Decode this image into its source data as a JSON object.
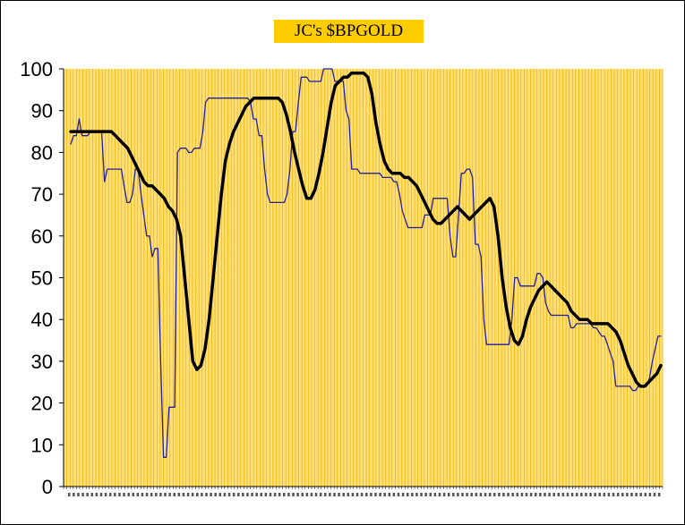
{
  "chart_data": {
    "type": "line",
    "title": "JC's $BPGOLD",
    "xlabel": "",
    "ylabel": "",
    "ylim": [
      0,
      100
    ],
    "yticks": [
      0,
      10,
      20,
      30,
      40,
      50,
      60,
      70,
      80,
      90,
      100
    ],
    "grid": "vertical",
    "plot_background": "#FFE07A",
    "grid_color": "#F2B400",
    "x_tick_labels_note": "dense date ticks (illegible)",
    "series": [
      {
        "style": "thin",
        "color": "#1F1F9E",
        "values": [
          82,
          84,
          84,
          88,
          84,
          84,
          84,
          85,
          85,
          85,
          85,
          85,
          73,
          76,
          76,
          76,
          76,
          76,
          76,
          72,
          68,
          68,
          70,
          76,
          76,
          70,
          65,
          60,
          60,
          55,
          57,
          57,
          30,
          7,
          7,
          19,
          19,
          19,
          80,
          81,
          81,
          81,
          80,
          80,
          81,
          81,
          81,
          85,
          92,
          93,
          93,
          93,
          93,
          93,
          93,
          93,
          93,
          93,
          93,
          93,
          93,
          93,
          93,
          93,
          92,
          88,
          88,
          84,
          84,
          76,
          70,
          68,
          68,
          68,
          68,
          68,
          68,
          70,
          76,
          85,
          85,
          92,
          98,
          98,
          98,
          97,
          97,
          97,
          97,
          97,
          100,
          100,
          100,
          100,
          97,
          97,
          97,
          97,
          90,
          88,
          76,
          76,
          76,
          75,
          75,
          75,
          75,
          75,
          75,
          75,
          75,
          74,
          74,
          74,
          74,
          73,
          73,
          70,
          66,
          64,
          62,
          62,
          62,
          62,
          62,
          62,
          65,
          65,
          65,
          69,
          69,
          69,
          69,
          69,
          69,
          60,
          55,
          55,
          65,
          75,
          75,
          76,
          76,
          74,
          58,
          58,
          55,
          40,
          34,
          34,
          34,
          34,
          34,
          34,
          34,
          34,
          34,
          40,
          50,
          50,
          48,
          48,
          48,
          48,
          48,
          48,
          51,
          51,
          50,
          44,
          42,
          41,
          41,
          41,
          41,
          41,
          41,
          41,
          38,
          38,
          39,
          39,
          39,
          39,
          39,
          39,
          38,
          38,
          37,
          36,
          36,
          34,
          32,
          30,
          24,
          24,
          24,
          24,
          24,
          24,
          23,
          23,
          24,
          24,
          24,
          24,
          26,
          30,
          33,
          36,
          36
        ]
      },
      {
        "style": "thick",
        "color": "#000000",
        "values": [
          85,
          85,
          85,
          85,
          85,
          85,
          85,
          85,
          85,
          85,
          85,
          84,
          83,
          82,
          81,
          79,
          77,
          75,
          73,
          72,
          72,
          71,
          70,
          69,
          67,
          66,
          64,
          60,
          50,
          40,
          30,
          28,
          29,
          33,
          40,
          50,
          60,
          70,
          78,
          82,
          85,
          87,
          89,
          91,
          92,
          93,
          93,
          93,
          93,
          93,
          93,
          93,
          92,
          89,
          85,
          80,
          76,
          72,
          69,
          69,
          71,
          75,
          80,
          86,
          92,
          96,
          97,
          98,
          98,
          99,
          99,
          99,
          99,
          98,
          94,
          87,
          82,
          78,
          76,
          75,
          75,
          75,
          74,
          74,
          73,
          72,
          70,
          68,
          66,
          64,
          63,
          63,
          64,
          65,
          66,
          67,
          66,
          65,
          64,
          65,
          66,
          67,
          68,
          69,
          67,
          60,
          50,
          43,
          38,
          35,
          34,
          36,
          40,
          43,
          45,
          47,
          48,
          49,
          48,
          47,
          46,
          45,
          44,
          42,
          41,
          40,
          40,
          40,
          39,
          39,
          39,
          39,
          39,
          38,
          37,
          35,
          32,
          29,
          27,
          25,
          24,
          24,
          25,
          26,
          27,
          29
        ]
      }
    ]
  }
}
